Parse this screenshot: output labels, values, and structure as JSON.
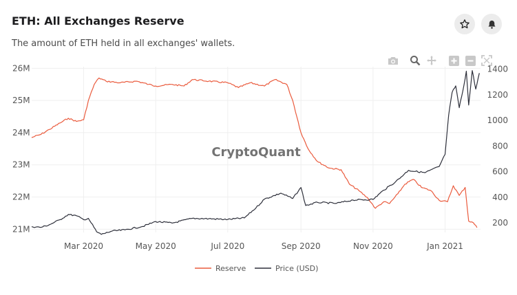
{
  "header": {
    "title": "ETH: All Exchanges Reserve",
    "subtitle": "The amount of ETH held in all exchanges' wallets."
  },
  "actions": {
    "star_icon": "star-icon",
    "bell_icon": "bell-icon"
  },
  "modebar": {
    "icons": [
      "camera-icon",
      "zoom-icon",
      "pan-icon",
      "zoom-in-icon",
      "zoom-out-icon",
      "autoscale-icon"
    ]
  },
  "watermark": "CryptoQuant",
  "colors": {
    "reserve": "#ea5a3c",
    "price": "#2d2f3a",
    "grid": "#efefef",
    "tick": "#555555"
  },
  "chart_data": {
    "type": "line",
    "x_ticks": [
      "Mar 2020",
      "May 2020",
      "Jul 2020",
      "Sep 2020",
      "Nov 2020",
      "Jan 2021"
    ],
    "x_tick_dates": [
      "2020-03-01",
      "2020-05-01",
      "2020-07-01",
      "2020-09-01",
      "2020-11-01",
      "2021-01-01"
    ],
    "xlim": [
      "2020-01-17",
      "2021-01-31"
    ],
    "y_left": {
      "ticks": [
        "21M",
        "22M",
        "23M",
        "24M",
        "25M",
        "26M"
      ],
      "tick_values": [
        21,
        22,
        23,
        24,
        25,
        26
      ],
      "range": [
        20.9,
        26.05
      ]
    },
    "y_right": {
      "ticks": [
        "200",
        "400",
        "600",
        "800",
        "1000",
        "1200",
        "1400"
      ],
      "tick_values": [
        200,
        400,
        600,
        800,
        1000,
        1200,
        1400
      ],
      "range": [
        125,
        1420
      ]
    },
    "grid": true,
    "legend_position": "bottom-center",
    "series": [
      {
        "name": "Reserve",
        "axis": "left",
        "points": [
          [
            "2020-01-17",
            23.85
          ],
          [
            "2020-01-25",
            23.95
          ],
          [
            "2020-02-01",
            24.1
          ],
          [
            "2020-02-10",
            24.3
          ],
          [
            "2020-02-17",
            24.45
          ],
          [
            "2020-02-24",
            24.35
          ],
          [
            "2020-03-01",
            24.4
          ],
          [
            "2020-03-05",
            25.0
          ],
          [
            "2020-03-10",
            25.5
          ],
          [
            "2020-03-14",
            25.7
          ],
          [
            "2020-03-20",
            25.6
          ],
          [
            "2020-04-01",
            25.55
          ],
          [
            "2020-04-15",
            25.6
          ],
          [
            "2020-04-25",
            25.5
          ],
          [
            "2020-05-01",
            25.45
          ],
          [
            "2020-05-15",
            25.5
          ],
          [
            "2020-05-25",
            25.45
          ],
          [
            "2020-06-01",
            25.65
          ],
          [
            "2020-06-15",
            25.6
          ],
          [
            "2020-07-01",
            25.55
          ],
          [
            "2020-07-10",
            25.4
          ],
          [
            "2020-07-20",
            25.55
          ],
          [
            "2020-08-01",
            25.45
          ],
          [
            "2020-08-10",
            25.65
          ],
          [
            "2020-08-20",
            25.5
          ],
          [
            "2020-08-25",
            25.0
          ],
          [
            "2020-09-01",
            24.0
          ],
          [
            "2020-09-07",
            23.5
          ],
          [
            "2020-09-15",
            23.1
          ],
          [
            "2020-09-25",
            22.9
          ],
          [
            "2020-10-05",
            22.85
          ],
          [
            "2020-10-12",
            22.4
          ],
          [
            "2020-10-20",
            22.2
          ],
          [
            "2020-10-28",
            21.95
          ],
          [
            "2020-11-03",
            21.65
          ],
          [
            "2020-11-10",
            21.85
          ],
          [
            "2020-11-15",
            21.8
          ],
          [
            "2020-11-22",
            22.1
          ],
          [
            "2020-11-28",
            22.4
          ],
          [
            "2020-12-05",
            22.55
          ],
          [
            "2020-12-12",
            22.3
          ],
          [
            "2020-12-20",
            22.2
          ],
          [
            "2020-12-27",
            21.9
          ],
          [
            "2021-01-03",
            21.85
          ],
          [
            "2021-01-08",
            22.35
          ],
          [
            "2021-01-13",
            22.05
          ],
          [
            "2021-01-18",
            22.3
          ],
          [
            "2021-01-21",
            21.25
          ],
          [
            "2021-01-25",
            21.2
          ],
          [
            "2021-01-28",
            21.05
          ]
        ]
      },
      {
        "name": "Price (USD)",
        "axis": "right",
        "points": [
          [
            "2020-01-17",
            170
          ],
          [
            "2020-01-25",
            165
          ],
          [
            "2020-02-01",
            185
          ],
          [
            "2020-02-10",
            225
          ],
          [
            "2020-02-17",
            265
          ],
          [
            "2020-02-24",
            255
          ],
          [
            "2020-03-01",
            225
          ],
          [
            "2020-03-05",
            235
          ],
          [
            "2020-03-12",
            130
          ],
          [
            "2020-03-16",
            110
          ],
          [
            "2020-03-25",
            135
          ],
          [
            "2020-04-05",
            145
          ],
          [
            "2020-04-20",
            172
          ],
          [
            "2020-05-01",
            210
          ],
          [
            "2020-05-15",
            198
          ],
          [
            "2020-06-01",
            235
          ],
          [
            "2020-06-15",
            232
          ],
          [
            "2020-07-01",
            226
          ],
          [
            "2020-07-15",
            238
          ],
          [
            "2020-07-25",
            318
          ],
          [
            "2020-08-01",
            385
          ],
          [
            "2020-08-15",
            432
          ],
          [
            "2020-08-25",
            390
          ],
          [
            "2020-09-01",
            476
          ],
          [
            "2020-09-05",
            335
          ],
          [
            "2020-09-15",
            360
          ],
          [
            "2020-10-01",
            352
          ],
          [
            "2020-10-15",
            378
          ],
          [
            "2020-11-01",
            383
          ],
          [
            "2020-11-10",
            455
          ],
          [
            "2020-11-20",
            520
          ],
          [
            "2020-12-01",
            610
          ],
          [
            "2020-12-15",
            592
          ],
          [
            "2020-12-27",
            640
          ],
          [
            "2021-01-01",
            735
          ],
          [
            "2021-01-04",
            1040
          ],
          [
            "2021-01-07",
            1220
          ],
          [
            "2021-01-10",
            1270
          ],
          [
            "2021-01-13",
            1100
          ],
          [
            "2021-01-16",
            1230
          ],
          [
            "2021-01-19",
            1385
          ],
          [
            "2021-01-21",
            1120
          ],
          [
            "2021-01-24",
            1390
          ],
          [
            "2021-01-27",
            1245
          ],
          [
            "2021-01-30",
            1370
          ]
        ]
      }
    ]
  },
  "legend": [
    {
      "label": "Reserve"
    },
    {
      "label": "Price (USD)"
    }
  ]
}
